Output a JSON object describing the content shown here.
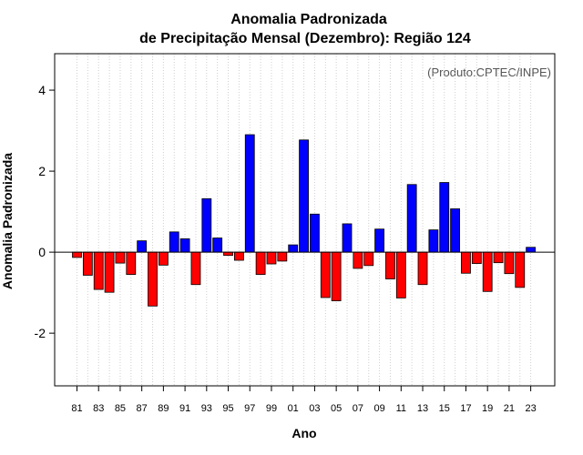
{
  "chart_data": {
    "type": "bar",
    "title": "Anomalia Padronizada",
    "subtitle": "de Precipitação Mensal (Dezembro): Região 124",
    "xlabel": "Ano",
    "ylabel": "Anomalia Padronizada",
    "credit": "(Produto:CPTEC/INPE)",
    "ylim": [
      -3.3,
      4.9
    ],
    "yticks": [
      -2,
      0,
      2,
      4
    ],
    "grid": "vertical dotted",
    "positive_color": "#0000ff",
    "negative_color": "#ff0000",
    "categories": [
      "81",
      "82",
      "83",
      "84",
      "85",
      "86",
      "87",
      "88",
      "89",
      "90",
      "91",
      "92",
      "93",
      "94",
      "95",
      "96",
      "97",
      "98",
      "99",
      "00",
      "01",
      "02",
      "03",
      "04",
      "05",
      "06",
      "07",
      "08",
      "09",
      "10",
      "11",
      "12",
      "13",
      "14",
      "15",
      "16",
      "17",
      "18",
      "19",
      "20",
      "21",
      "22",
      "23"
    ],
    "tick_labels": [
      "81",
      "83",
      "85",
      "87",
      "89",
      "91",
      "93",
      "95",
      "97",
      "99",
      "01",
      "03",
      "05",
      "07",
      "09",
      "11",
      "13",
      "15",
      "17",
      "19",
      "21",
      "23"
    ],
    "values": [
      -0.13,
      -0.57,
      -0.92,
      -0.99,
      -0.27,
      -0.55,
      0.28,
      -1.33,
      -0.32,
      0.5,
      0.33,
      -0.8,
      1.32,
      0.35,
      -0.08,
      -0.2,
      2.9,
      -0.55,
      -0.29,
      -0.22,
      0.18,
      2.77,
      0.94,
      -1.12,
      -1.2,
      0.7,
      -0.4,
      -0.33,
      0.57,
      -0.66,
      -1.13,
      1.67,
      -0.8,
      0.55,
      1.72,
      1.07,
      -0.52,
      -0.28,
      -0.97,
      -0.26,
      -0.53,
      -0.87,
      0.12
    ]
  }
}
